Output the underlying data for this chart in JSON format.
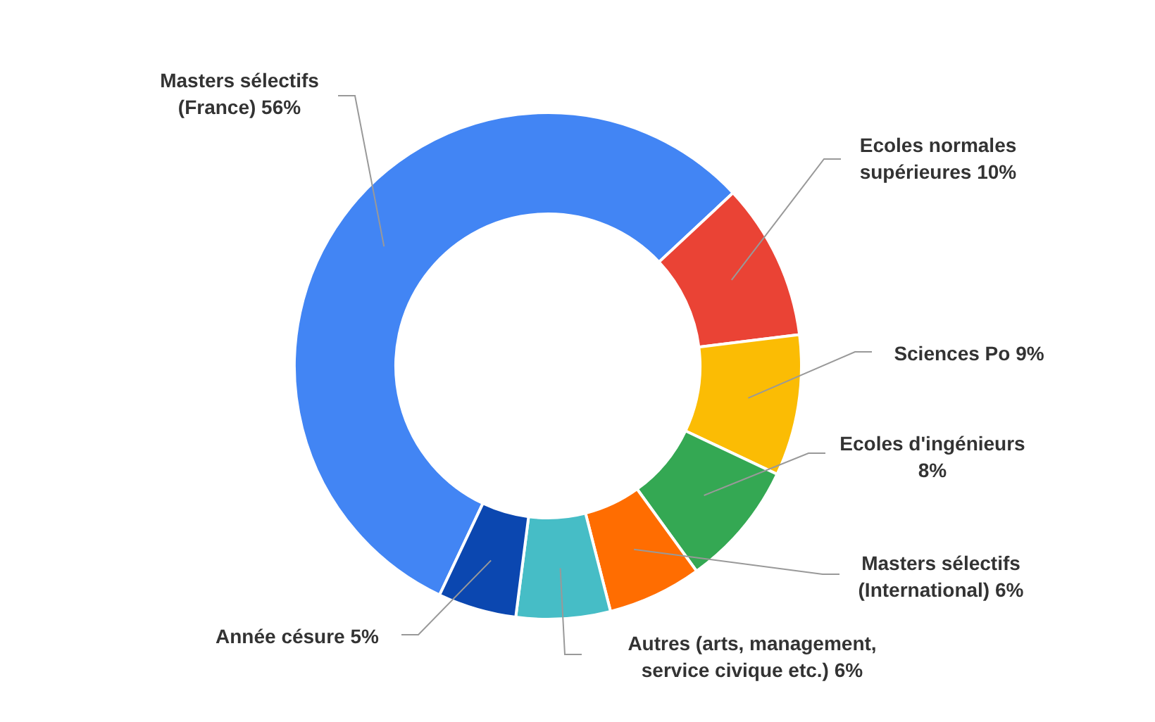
{
  "chart_data": {
    "type": "donut",
    "categories": [
      "Masters sélectifs (France)",
      "Ecoles normales supérieures",
      "Sciences Po",
      "Ecoles d'ingénieurs",
      "Masters sélectifs (International)",
      "Autres (arts, management, service civique etc.)",
      "Année césure"
    ],
    "values": [
      56,
      10,
      9,
      8,
      6,
      6,
      5
    ],
    "colors": [
      "#4285f4",
      "#ea4335",
      "#fbbc04",
      "#34a853",
      "#ff6d01",
      "#46bdc6",
      "#0b47b0"
    ],
    "value_labels": [
      "56%",
      "10%",
      "9%",
      "8%",
      "6%",
      "6%",
      "5%"
    ],
    "legend": false
  }
}
